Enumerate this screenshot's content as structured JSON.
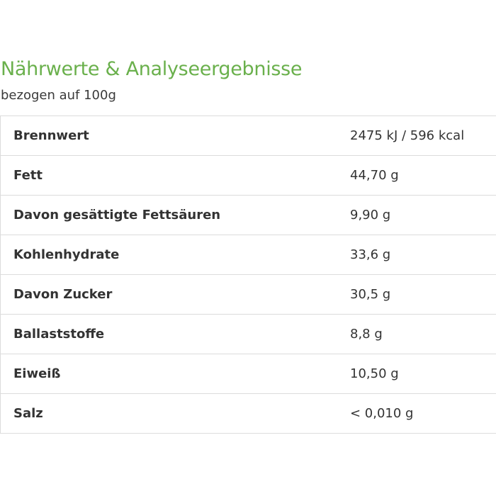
{
  "heading": {
    "title": "Nährwerte & Analyseergebnisse",
    "subtitle": "bezogen auf 100g"
  },
  "colors": {
    "title": "#6ab04c"
  },
  "nutrition_table": [
    {
      "label": "Brennwert",
      "value": "2475 kJ / 596 kcal"
    },
    {
      "label": "Fett",
      "value": "44,70 g"
    },
    {
      "label": "Davon gesättigte Fettsäuren",
      "value": "9,90 g"
    },
    {
      "label": "Kohlenhydrate",
      "value": "33,6 g"
    },
    {
      "label": "Davon Zucker",
      "value": "30,5 g"
    },
    {
      "label": "Ballaststoffe",
      "value": "8,8 g"
    },
    {
      "label": "Eiweiß",
      "value": "10,50 g"
    },
    {
      "label": "Salz",
      "value": "< 0,010 g"
    }
  ]
}
